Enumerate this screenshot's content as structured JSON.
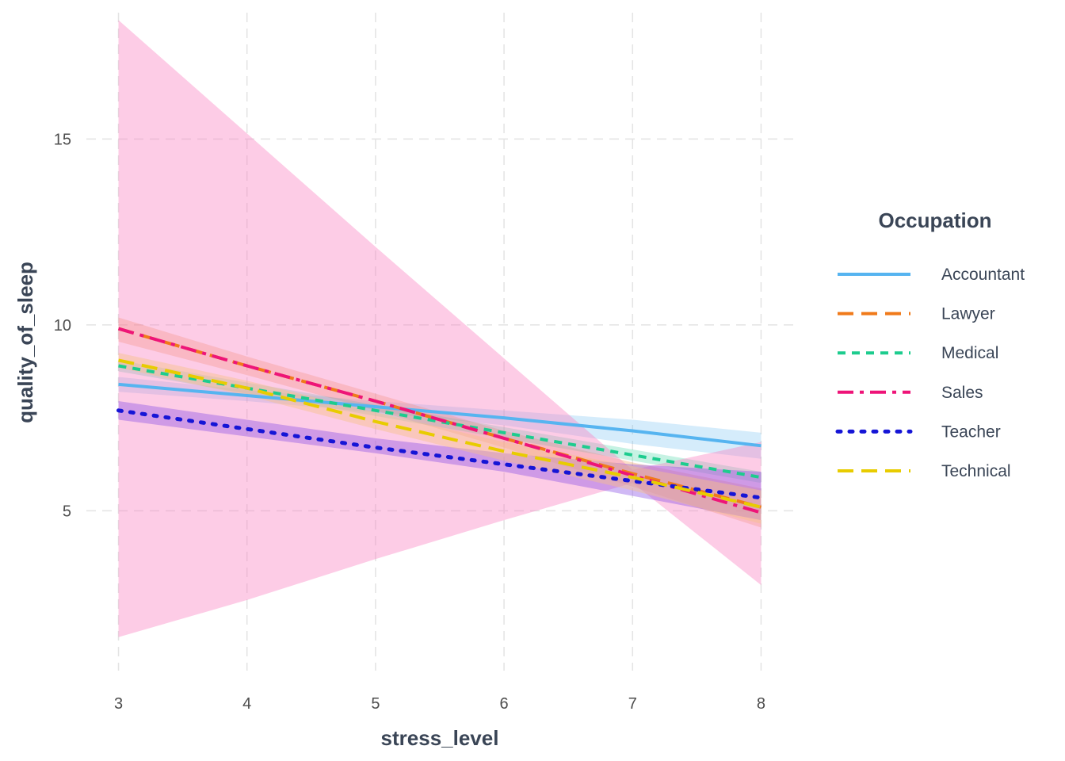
{
  "chart_data": {
    "type": "line",
    "xlabel": "stress_level",
    "ylabel": "quality_of_sleep",
    "xlim": [
      2.75,
      8.25
    ],
    "ylim": [
      0.7,
      18.4
    ],
    "x_ticks": [
      3,
      4,
      5,
      6,
      7,
      8
    ],
    "y_ticks": [
      5,
      10,
      15
    ],
    "grid": true,
    "legend": {
      "title": "Occupation",
      "placement": "right"
    },
    "series": [
      {
        "name": "Accountant",
        "color": "#56B4F0",
        "dash": "solid",
        "x": [
          3,
          4,
          5,
          6,
          7,
          8
        ],
        "y": [
          8.4,
          8.1,
          7.8,
          7.5,
          7.15,
          6.75
        ],
        "ci_low": [
          8.2,
          7.95,
          7.65,
          7.3,
          6.8,
          6.4
        ],
        "ci_high": [
          8.6,
          8.25,
          7.95,
          7.7,
          7.45,
          7.1
        ],
        "band_color": "#56B4F0",
        "band_opacity": 0.25
      },
      {
        "name": "Lawyer",
        "color": "#F07A1A",
        "dash": "long-dash",
        "x": [
          3,
          4,
          5,
          6,
          7,
          8
        ],
        "y": [
          9.9,
          8.9,
          7.95,
          6.95,
          6.0,
          5.1
        ],
        "ci_low": [
          9.55,
          8.65,
          7.7,
          6.7,
          5.65,
          4.55
        ],
        "ci_high": [
          10.2,
          9.15,
          8.15,
          7.15,
          6.3,
          5.6
        ],
        "band_color": "#F07A1A",
        "band_opacity": 0.25
      },
      {
        "name": "Medical",
        "color": "#1DCC8E",
        "dash": "dash",
        "x": [
          3,
          4,
          5,
          6,
          7,
          8
        ],
        "y": [
          8.9,
          8.3,
          7.7,
          7.1,
          6.5,
          5.9
        ],
        "ci_low": [
          8.75,
          8.15,
          7.55,
          6.95,
          6.35,
          5.75
        ],
        "ci_high": [
          9.05,
          8.45,
          7.85,
          7.25,
          6.65,
          6.05
        ],
        "band_color": "#1DCC8E",
        "band_opacity": 0.25
      },
      {
        "name": "Sales",
        "color": "#EE1478",
        "dash": "dash-dot",
        "x": [
          3,
          4,
          5,
          6,
          7,
          8
        ],
        "y": [
          9.9,
          8.9,
          7.95,
          6.95,
          5.95,
          4.95
        ],
        "ci_low": [
          1.6,
          2.6,
          3.7,
          4.75,
          5.75,
          3.0
        ],
        "ci_high": [
          18.2,
          15.15,
          12.1,
          9.1,
          6.1,
          6.85
        ],
        "band_color": "#F980C0",
        "band_opacity": 0.4
      },
      {
        "name": "Teacher",
        "color": "#1515D6",
        "dash": "dotted",
        "x": [
          3,
          4,
          5,
          6,
          7,
          8
        ],
        "y": [
          7.7,
          7.2,
          6.7,
          6.25,
          5.8,
          5.35
        ],
        "ci_low": [
          7.45,
          7.0,
          6.55,
          6.05,
          5.4,
          4.75
        ],
        "ci_high": [
          7.95,
          7.45,
          6.95,
          6.55,
          6.25,
          6.05
        ],
        "band_color": "#8A4FE6",
        "band_opacity": 0.4
      },
      {
        "name": "Technical",
        "color": "#E8CC00",
        "dash": "long-dash",
        "x": [
          3,
          4,
          5,
          6,
          7,
          8
        ],
        "y": [
          9.05,
          8.3,
          7.4,
          6.6,
          5.9,
          5.1
        ],
        "ci_low": [
          8.85,
          8.1,
          7.2,
          6.35,
          5.55,
          4.65
        ],
        "ci_high": [
          9.25,
          8.5,
          7.65,
          6.85,
          6.2,
          5.55
        ],
        "band_color": "#F7C08A",
        "band_opacity": 0.45
      }
    ]
  }
}
